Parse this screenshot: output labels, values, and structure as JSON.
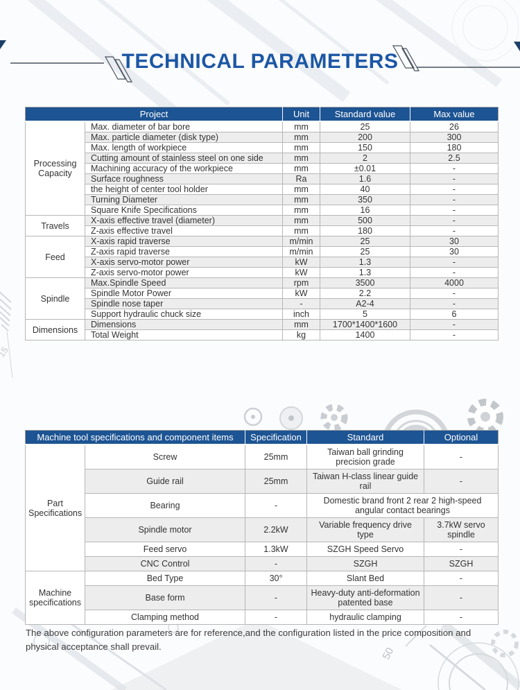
{
  "page": {
    "title": "TECHNICAL PARAMETERS",
    "footnote": "The above configuration parameters are for reference,and the configuration listed in the price composition and physical acceptance shall prevail."
  },
  "colors": {
    "header_bg": "#1d5493",
    "title_blue": "#1c57a5",
    "row_alt": "#ededed",
    "cell_border": "#b6b6b6"
  },
  "table1": {
    "headers": [
      "Project",
      "Unit",
      "Standard value",
      "Max value"
    ],
    "rows": [
      {
        "section": "Processing Capacity",
        "rowspan": 9,
        "cells": [
          "Max. diameter of bar bore",
          "mm",
          "25",
          "26"
        ]
      },
      {
        "cells": [
          "Max. particle diameter (disk type)",
          "mm",
          "200",
          "300"
        ]
      },
      {
        "cells": [
          "Max. length of workpiece",
          "mm",
          "150",
          "180"
        ]
      },
      {
        "cells": [
          "Cutting amount of stainless steel on one side",
          "mm",
          "2",
          "2.5"
        ]
      },
      {
        "cells": [
          "Machining accuracy of the workpiece",
          "mm",
          "±0.01",
          "-"
        ]
      },
      {
        "cells": [
          "Surface roughness",
          "Ra",
          "1.6",
          "-"
        ]
      },
      {
        "cells": [
          "the height of center tool holder",
          "mm",
          "40",
          "-"
        ]
      },
      {
        "cells": [
          "Turning Diameter",
          "mm",
          "350",
          "-"
        ]
      },
      {
        "cells": [
          "Square Knife Specifications",
          "mm",
          "16",
          "-"
        ]
      },
      {
        "section": "Travels",
        "rowspan": 2,
        "cells": [
          "X-axis  effective travel (diameter)",
          "mm",
          "500",
          "-"
        ]
      },
      {
        "cells": [
          "Z-axis effective  travel",
          "mm",
          "180",
          "-"
        ]
      },
      {
        "section": "Feed",
        "rowspan": 4,
        "cells": [
          "X-axis rapid traverse",
          "m/min",
          "25",
          "30"
        ]
      },
      {
        "cells": [
          "Z-axis rapid traverse",
          "m/min",
          "25",
          "30"
        ]
      },
      {
        "cells": [
          "X-axis servo-motor power",
          "kW",
          "1.3",
          "-"
        ]
      },
      {
        "cells": [
          "Z-axis servo-motor power",
          "kW",
          "1.3",
          "-"
        ]
      },
      {
        "section": "Spindle",
        "rowspan": 4,
        "cells": [
          "Max.Spindle Speed",
          "rpm",
          "3500",
          "4000"
        ]
      },
      {
        "cells": [
          "Spindle Motor Power",
          "kW",
          "2.2",
          "-"
        ]
      },
      {
        "cells": [
          "Spindle nose taper",
          "-",
          "A2-4",
          "-"
        ]
      },
      {
        "cells": [
          "Support hydraulic chuck size",
          "inch",
          "5",
          "6"
        ]
      },
      {
        "section": "Dimensions",
        "rowspan": 2,
        "cells": [
          "Dimensions",
          "mm",
          "1700*1400*1600",
          "-"
        ]
      },
      {
        "cells": [
          "Total Weight",
          "kg",
          "1400",
          "-"
        ]
      }
    ]
  },
  "table2": {
    "headers": [
      "Machine tool specifications and component items",
      "Specification",
      "Standard",
      "Optional"
    ],
    "rows": [
      {
        "section": "Part Specifications",
        "rowspan": 6,
        "cells": [
          "Screw",
          "25mm",
          "Taiwan ball grinding precision grade",
          "-"
        ]
      },
      {
        "cells": [
          "Guide rail",
          "25mm",
          "Taiwan H-class linear guide rail",
          "-"
        ]
      },
      {
        "cells": [
          "Bearing",
          "-",
          {
            "text": "Domestic brand front 2 rear 2 high-speed angular contact bearings",
            "colspan": 2
          }
        ]
      },
      {
        "cells": [
          "Spindle motor",
          "2.2kW",
          "Variable frequency drive type",
          "3.7kW servo spindle"
        ]
      },
      {
        "cells": [
          "Feed servo",
          "1.3kW",
          "SZGH Speed Servo",
          "-"
        ]
      },
      {
        "cells": [
          "CNC Control",
          "-",
          "SZGH",
          "SZGH"
        ]
      },
      {
        "section": "Machine specifications",
        "rowspan": 3,
        "cells": [
          "Bed Type",
          "30°",
          "Slant Bed",
          "-"
        ]
      },
      {
        "cells": [
          "Base form",
          "-",
          "Heavy-duty anti-deformation patented base",
          "-"
        ]
      },
      {
        "cells": [
          "Clamping method",
          "-",
          "hydraulic clamping",
          "-"
        ]
      }
    ]
  }
}
